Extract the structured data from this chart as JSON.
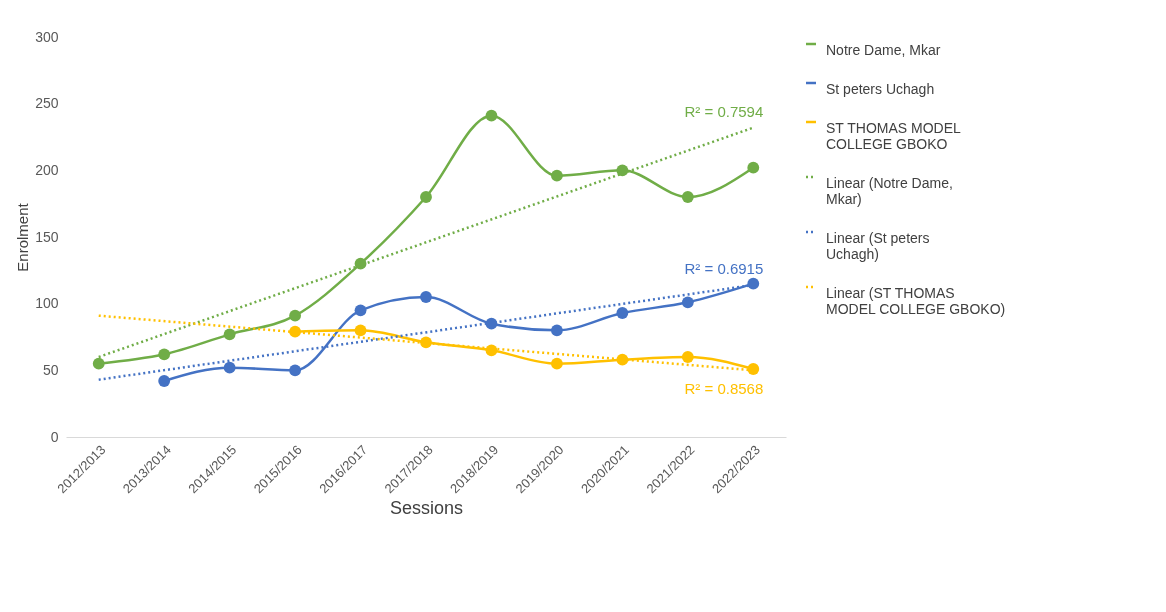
{
  "chart_data": {
    "type": "line",
    "xlabel": "Sessions",
    "ylabel": "Enrolment",
    "categories": [
      "2012/2013",
      "2013/2014",
      "2014/2015",
      "2015/2016",
      "2016/2017",
      "2017/2018",
      "2018/2019",
      "2019/2020",
      "2020/2021",
      "2021/2022",
      "2022/2023"
    ],
    "series": [
      {
        "name": "Notre Dame, Mkar",
        "color": "#70ad47",
        "values": [
          55,
          62,
          77,
          91,
          130,
          180,
          241,
          196,
          200,
          180,
          202
        ]
      },
      {
        "name": "St peters Uchagh",
        "color": "#4472c4",
        "values": [
          null,
          42,
          52,
          50,
          95,
          105,
          85,
          80,
          93,
          101,
          115
        ]
      },
      {
        "name": "ST THOMAS MODEL COLLEGE GBOKO",
        "color": "#ffc000",
        "values": [
          null,
          null,
          null,
          79,
          80,
          71,
          65,
          55,
          58,
          60,
          51
        ]
      },
      {
        "name": "Linear (Notre Dame, Mkar)",
        "type": "line",
        "color": "#70ad47",
        "line_style": "dotted",
        "marker": "none",
        "x": [
          "2012/2013",
          "2022/2023"
        ],
        "values": [
          60,
          232
        ]
      },
      {
        "name": "Linear (St peters Uchagh)",
        "type": "line",
        "color": "#4472c4",
        "line_style": "dotted",
        "marker": "none",
        "x": [
          "2012/2013",
          "2022/2023"
        ],
        "values": [
          43,
          114
        ]
      },
      {
        "name": "Linear (ST THOMAS MODEL COLLEGE GBOKO)",
        "type": "line",
        "color": "#ffc000",
        "line_style": "dotted",
        "marker": "none",
        "x": [
          "2012/2013",
          "2022/2023"
        ],
        "values": [
          91,
          50
        ]
      }
    ],
    "annotations": [
      "R² = 0.7594",
      "R² = 0.6915",
      "R² = 0.8568"
    ],
    "ylim": [
      0,
      300
    ],
    "yticks": [
      0,
      50,
      100,
      150,
      200,
      250,
      300
    ],
    "grid": false,
    "legend": "right",
    "marker": "circle",
    "line_style": "solid"
  }
}
